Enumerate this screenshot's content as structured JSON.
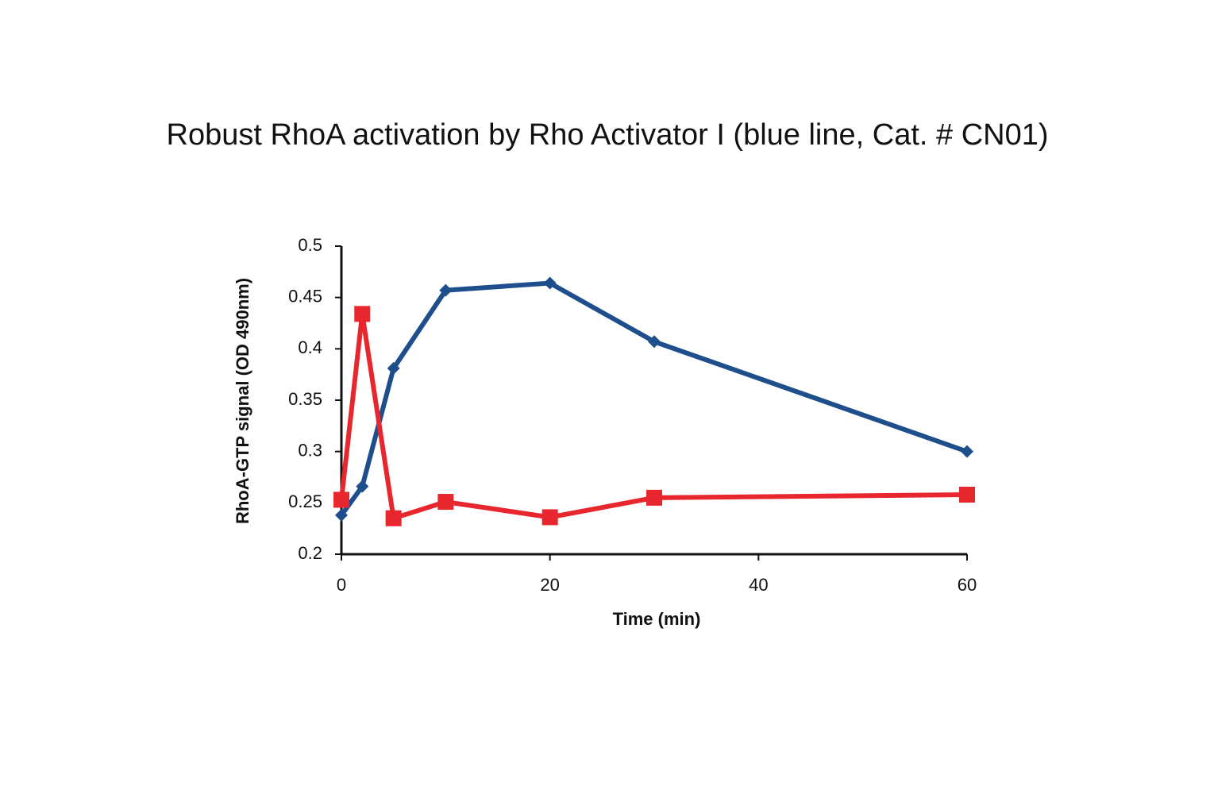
{
  "chart_data": {
    "type": "line",
    "title": "Robust RhoA activation by Rho Activator I (blue line, Cat. # CN01)",
    "x_label": "Time (min)",
    "y_label": "RhoA-GTP signal (OD 490nm)",
    "x": [
      0,
      2,
      5,
      10,
      20,
      30,
      60
    ],
    "series": [
      {
        "color": "#1f4e8c",
        "marker": "diamond",
        "values": [
          0.238,
          0.266,
          0.381,
          0.457,
          0.464,
          0.407,
          0.3
        ]
      },
      {
        "color": "#e8262d",
        "marker": "square",
        "values": [
          0.253,
          0.434,
          0.235,
          0.251,
          0.236,
          0.255,
          0.258
        ]
      }
    ],
    "xlim": [
      0,
      60
    ],
    "xticks": [
      0,
      20,
      40,
      60
    ],
    "ylim": [
      0.2,
      0.5
    ],
    "yticks": [
      0.2,
      0.25,
      0.3,
      0.35,
      0.4,
      0.45,
      0.5
    ],
    "grid": false
  }
}
